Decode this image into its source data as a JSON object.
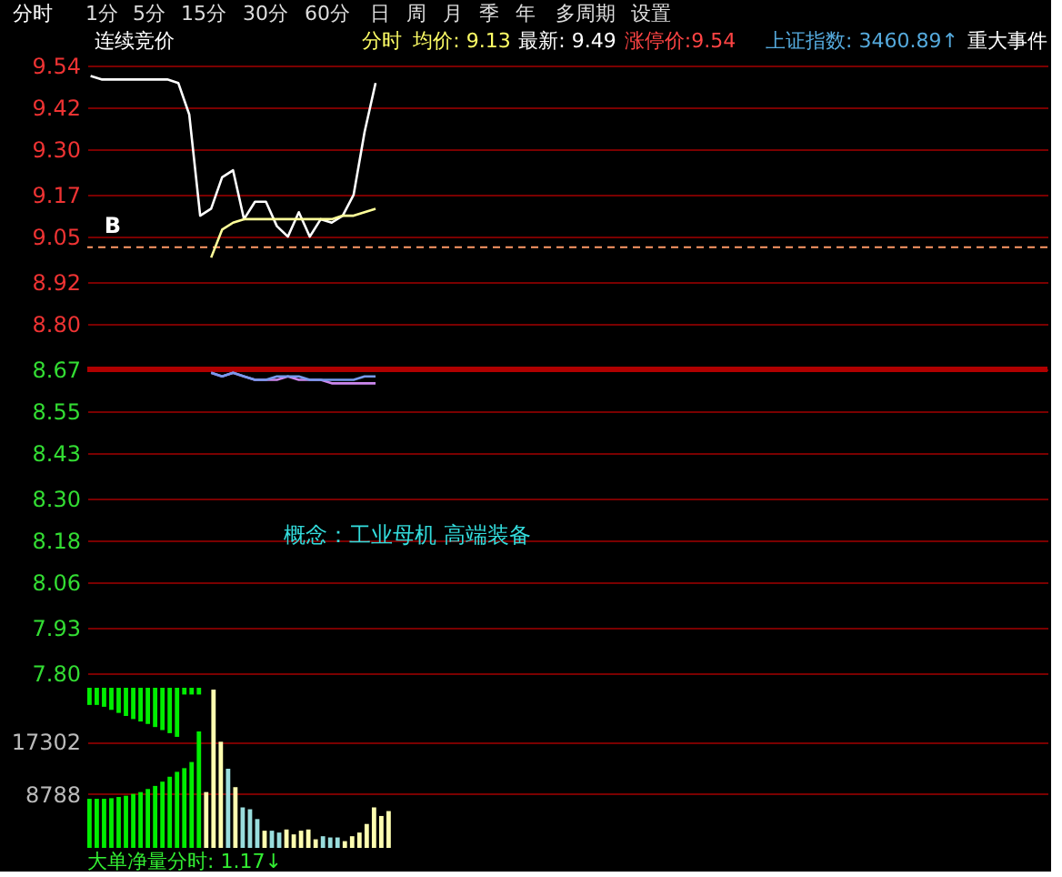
{
  "chart_data": [
    {
      "type": "line",
      "tick_labels": "y",
      "grid": "y",
      "marker": "none",
      "line_style": "solid",
      "annotations": [
        "分时",
        "1分",
        "5分",
        "15分",
        "30分",
        "60分",
        "日",
        "周",
        "月",
        "季",
        "年",
        "多周期",
        "设置",
        "连续竞价",
        "分时",
        "均价: 9.13",
        "最新: 9.49",
        "涨停价:9.54",
        "上证指数: 3460.89↑",
        "重大事件",
        "概念：工业母机 高端装备",
        "B"
      ],
      "categories": [
        null,
        null,
        null,
        null,
        null,
        null,
        null,
        null,
        null,
        null,
        null,
        null,
        null,
        null,
        null,
        null,
        null,
        null,
        null,
        null,
        null,
        null,
        null,
        null,
        null,
        null,
        null,
        null,
        null,
        null,
        null,
        null,
        null,
        null,
        null,
        null,
        null,
        null,
        null,
        null,
        null,
        null,
        null,
        null,
        null,
        null,
        null,
        null,
        null,
        null,
        null,
        null,
        null,
        null,
        null,
        null,
        null,
        null,
        null,
        null,
        null,
        null,
        null,
        null,
        null,
        null,
        null,
        null,
        null,
        null,
        null,
        null,
        null,
        null,
        null,
        null,
        null,
        null,
        null,
        null,
        null,
        null,
        null,
        null,
        null,
        null,
        null,
        null
      ],
      "ylim": [
        7.8,
        9.54
      ],
      "yticks": [
        9.54,
        9.42,
        {
          "value": 9.3,
          "label": "9.30"
        },
        9.17,
        9.05,
        8.92,
        {
          "value": 8.8,
          "label": "8.80"
        },
        8.67,
        8.55,
        8.43,
        {
          "value": 8.3,
          "label": "8.30"
        },
        8.18,
        8.06,
        7.93,
        {
          "value": 7.8,
          "label": "7.80"
        }
      ],
      "ref_lines": [
        {
          "axis": "y",
          "value": 8.67,
          "color": "#b00000",
          "line_style": "solid"
        },
        {
          "axis": "y",
          "value": 9.02,
          "color": "#ff9966",
          "line_style": "dashed"
        }
      ],
      "series": [
        {
          "color": "#ffffff",
          "values": [
            9.51,
            9.5,
            9.5,
            9.5,
            9.5,
            9.5,
            9.5,
            9.5,
            9.49,
            9.4,
            9.11,
            9.13,
            9.22,
            9.24,
            9.1,
            9.15,
            9.15,
            9.08,
            9.05,
            9.12,
            9.05,
            9.1,
            9.09,
            9.11,
            9.17,
            9.35,
            9.49,
            null,
            null,
            null,
            null,
            null,
            null,
            null,
            null,
            null,
            null,
            null,
            null,
            null,
            null,
            null,
            null,
            null,
            null,
            null,
            null,
            null,
            null,
            null,
            null,
            null,
            null,
            null,
            null,
            null,
            null,
            null,
            null,
            null,
            null,
            null,
            null,
            null,
            null,
            null,
            null,
            null,
            null,
            null,
            null,
            null,
            null,
            null,
            null,
            null,
            null,
            null,
            null,
            null,
            null,
            null,
            null,
            null,
            null,
            null,
            null,
            null
          ]
        },
        {
          "color": "#ffff99",
          "values": [
            null,
            null,
            null,
            null,
            null,
            null,
            null,
            null,
            null,
            null,
            null,
            8.99,
            9.07,
            9.09,
            9.1,
            9.1,
            9.1,
            9.1,
            9.1,
            9.1,
            9.1,
            9.1,
            9.1,
            9.11,
            9.11,
            9.12,
            9.13,
            null,
            null,
            null,
            null,
            null,
            null,
            null,
            null,
            null,
            null,
            null,
            null,
            null,
            null,
            null,
            null,
            null,
            null,
            null,
            null,
            null,
            null,
            null,
            null,
            null,
            null,
            null,
            null,
            null,
            null,
            null,
            null,
            null,
            null,
            null,
            null,
            null,
            null,
            null,
            null,
            null,
            null,
            null,
            null,
            null,
            null,
            null,
            null,
            null,
            null,
            null,
            null,
            null,
            null,
            null,
            null,
            null,
            null,
            null,
            null,
            null
          ]
        },
        {
          "color": "#cc88ee",
          "values": [
            null,
            null,
            null,
            null,
            null,
            null,
            null,
            null,
            null,
            null,
            null,
            8.66,
            8.65,
            8.66,
            8.65,
            8.64,
            8.64,
            8.64,
            8.65,
            8.64,
            8.64,
            8.64,
            8.63,
            8.63,
            8.63,
            8.63,
            8.63,
            null,
            null,
            null,
            null,
            null,
            null,
            null,
            null,
            null,
            null,
            null,
            null,
            null,
            null,
            null,
            null,
            null,
            null,
            null,
            null,
            null,
            null,
            null,
            null,
            null,
            null,
            null,
            null,
            null,
            null,
            null,
            null,
            null,
            null,
            null,
            null,
            null,
            null,
            null,
            null,
            null,
            null,
            null,
            null,
            null,
            null,
            null,
            null,
            null,
            null,
            null,
            null,
            null,
            null,
            null,
            null,
            null,
            null,
            null,
            null,
            null
          ]
        },
        {
          "color": "#7799ee",
          "values": [
            null,
            null,
            null,
            null,
            null,
            null,
            null,
            null,
            null,
            null,
            null,
            8.66,
            8.65,
            8.66,
            8.65,
            8.64,
            8.64,
            8.65,
            8.65,
            8.65,
            8.64,
            8.64,
            8.64,
            8.64,
            8.64,
            8.65,
            8.65,
            null,
            null,
            null,
            null,
            null,
            null,
            null,
            null,
            null,
            null,
            null,
            null,
            null,
            null,
            null,
            null,
            null,
            null,
            null,
            null,
            null,
            null,
            null,
            null,
            null,
            null,
            null,
            null,
            null,
            null,
            null,
            null,
            null,
            null,
            null,
            null,
            null,
            null,
            null,
            null,
            null,
            null,
            null,
            null,
            null,
            null,
            null,
            null,
            null,
            null,
            null,
            null,
            null,
            null,
            null,
            null,
            null,
            null,
            null,
            null,
            null
          ]
        }
      ]
    },
    {
      "type": "bar",
      "tick_labels": "y",
      "grid": "y",
      "annotations": [
        "大单净量分时: 1.17↓"
      ],
      "categories": [
        null,
        null,
        null,
        null,
        null,
        null,
        null,
        null,
        null,
        null,
        null,
        null,
        null,
        null,
        null,
        null,
        null,
        null,
        null,
        null,
        null,
        null,
        null,
        null,
        null,
        null,
        null,
        null,
        null,
        null,
        null,
        null,
        null,
        null,
        null,
        null,
        null,
        null,
        null,
        null,
        null,
        null,
        null,
        null,
        null,
        null,
        null,
        null,
        null,
        null,
        null,
        null,
        null,
        null,
        null,
        null,
        null,
        null,
        null,
        null,
        null,
        null,
        null,
        null,
        null,
        null,
        null,
        null,
        null,
        null,
        null,
        null,
        null,
        null,
        null,
        null,
        null,
        null,
        null,
        null,
        null,
        null,
        null,
        null,
        null,
        null,
        null,
        null,
        null,
        null,
        null,
        null,
        null,
        null,
        null,
        null,
        null,
        null,
        null,
        null,
        null,
        null,
        null,
        null,
        null,
        null,
        null,
        null,
        null,
        null,
        null,
        null,
        null,
        null,
        null,
        null,
        null,
        null,
        null,
        null,
        null,
        null,
        null,
        null,
        null,
        null,
        null,
        null,
        null,
        null,
        null,
        null
      ],
      "ylim": [
        0,
        26100
      ],
      "yticks": [
        8788,
        17302
      ],
      "series": [
        {
          "color": "#00ee00",
          "values": [
            8000,
            8000,
            8000,
            8100,
            8300,
            8500,
            8800,
            9100,
            9600,
            10100,
            10800,
            11600,
            12400,
            13000,
            14000,
            19000,
            null,
            null,
            null,
            null,
            null,
            null,
            null,
            null,
            null,
            null,
            null,
            null,
            null,
            null,
            null,
            null,
            null,
            null,
            null,
            null,
            null,
            null,
            null,
            null,
            null,
            null,
            null,
            null,
            null,
            null,
            null,
            null,
            null,
            null,
            null,
            null,
            null,
            null,
            null,
            null,
            null,
            null,
            null,
            null,
            null,
            null,
            null,
            null,
            null,
            null,
            null,
            null,
            null,
            null,
            null,
            null,
            null,
            null,
            null,
            null,
            null,
            null,
            null,
            null,
            null,
            null,
            null,
            null,
            null,
            null,
            null,
            null,
            null,
            null,
            null,
            null,
            null,
            null,
            null,
            null,
            null,
            null,
            null,
            null,
            null,
            null,
            null,
            null,
            null,
            null,
            null,
            null,
            null,
            null,
            null,
            null,
            null,
            null,
            null,
            null,
            null,
            null,
            null,
            null,
            null,
            null,
            null,
            null,
            null,
            null,
            null,
            null,
            null,
            null,
            null,
            null
          ]
        },
        {
          "color": "#00ee00",
          "base": [
            23300,
            23300,
            23000,
            22500,
            22000,
            21500,
            21000,
            20600,
            20200,
            19700,
            19200,
            18700,
            18100,
            25000,
            25000,
            25000,
            null,
            null,
            null,
            null,
            null,
            null,
            null,
            null,
            null,
            null,
            null,
            null,
            null,
            null,
            null,
            null,
            null,
            null,
            null,
            null,
            null,
            null,
            null,
            null,
            null,
            null,
            null,
            null,
            null,
            null,
            null,
            null,
            null,
            null,
            null,
            null,
            null,
            null,
            null,
            null,
            null,
            null,
            null,
            null,
            null,
            null,
            null,
            null,
            null,
            null,
            null,
            null,
            null,
            null,
            null,
            null,
            null,
            null,
            null,
            null,
            null,
            null,
            null,
            null,
            null,
            null,
            null,
            null,
            null,
            null,
            null,
            null,
            null,
            null,
            null,
            null,
            null,
            null,
            null,
            null,
            null,
            null,
            null,
            null,
            null,
            null,
            null,
            null,
            null,
            null,
            null,
            null,
            null,
            null,
            null,
            null,
            null,
            null,
            null,
            null,
            null,
            null,
            null,
            null,
            null,
            null,
            null,
            null,
            null,
            null,
            null,
            null,
            null,
            null,
            null,
            null
          ],
          "values": [
            2800,
            2800,
            3100,
            3600,
            4100,
            4600,
            5100,
            5500,
            5900,
            6400,
            6900,
            7400,
            8000,
            1100,
            1100,
            1100,
            null,
            null,
            null,
            null,
            null,
            null,
            null,
            null,
            null,
            null,
            null,
            null,
            null,
            null,
            null,
            null,
            null,
            null,
            null,
            null,
            null,
            null,
            null,
            null,
            null,
            null,
            null,
            null,
            null,
            null,
            null,
            null,
            null,
            null,
            null,
            null,
            null,
            null,
            null,
            null,
            null,
            null,
            null,
            null,
            null,
            null,
            null,
            null,
            null,
            null,
            null,
            null,
            null,
            null,
            null,
            null,
            null,
            null,
            null,
            null,
            null,
            null,
            null,
            null,
            null,
            null,
            null,
            null,
            null,
            null,
            null,
            null,
            null,
            null,
            null,
            null,
            null,
            null,
            null,
            null,
            null,
            null,
            null,
            null,
            null,
            null,
            null,
            null,
            null,
            null,
            null,
            null,
            null,
            null,
            null,
            null,
            null,
            null,
            null,
            null,
            null,
            null,
            null,
            null,
            null,
            null,
            null,
            null,
            null,
            null,
            null,
            null,
            null,
            null,
            null,
            null
          ]
        },
        {
          "values": [
            null,
            null,
            null,
            null,
            null,
            null,
            null,
            null,
            null,
            null,
            null,
            null,
            null,
            null,
            null,
            null,
            9100,
            25800,
            17300,
            12900,
            9900,
            6600,
            6300,
            4700,
            2800,
            2800,
            2500,
            3000,
            2200,
            2800,
            3000,
            1400,
            1900,
            1700,
            1700,
            1100,
            1900,
            2500,
            3900,
            6600,
            5200,
            6000,
            null,
            null,
            null,
            null,
            null,
            null,
            null,
            null,
            null,
            null,
            null,
            null,
            null,
            null,
            null,
            null,
            null,
            null,
            null,
            null,
            null,
            null,
            null,
            null,
            null,
            null,
            null,
            null,
            null,
            null,
            null,
            null,
            null,
            null,
            null,
            null,
            null,
            null,
            null,
            null,
            null,
            null,
            null,
            null,
            null,
            null,
            null,
            null,
            null,
            null,
            null,
            null,
            null,
            null,
            null,
            null,
            null,
            null,
            null,
            null,
            null,
            null,
            null,
            null,
            null,
            null,
            null,
            null,
            null,
            null,
            null,
            null,
            null,
            null,
            null,
            null,
            null,
            null,
            null,
            null,
            null,
            null,
            null,
            null,
            null,
            null,
            null,
            null,
            null,
            null
          ],
          "colors": [
            null,
            null,
            null,
            null,
            null,
            null,
            null,
            null,
            null,
            null,
            null,
            null,
            null,
            null,
            null,
            null,
            "#ffffb0",
            "#ffffb0",
            "#ffffb0",
            "#99dddd",
            "#ffffb0",
            "#99dddd",
            "#99dddd",
            "#99dddd",
            "#ffffb0",
            "#99dddd",
            "#99dddd",
            "#ffffb0",
            "#ffffb0",
            "#ffffb0",
            "#ffffb0",
            "#ffffb0",
            "#99dddd",
            "#99dddd",
            "#99dddd",
            "#ffffb0",
            "#ffffb0",
            "#ffffb0",
            "#ffffb0",
            "#ffffb0",
            "#ffffb0",
            "#ffffb0",
            null,
            null,
            null,
            null,
            null,
            null,
            null,
            null,
            null,
            null,
            null,
            null,
            null,
            null,
            null,
            null,
            null,
            null,
            null,
            null,
            null,
            null,
            null,
            null,
            null,
            null,
            null,
            null,
            null,
            null,
            null,
            null,
            null,
            null,
            null,
            null,
            null,
            null,
            null,
            null,
            null,
            null,
            null,
            null,
            null,
            null,
            null,
            null,
            null,
            null,
            null,
            null,
            null,
            null,
            null,
            null,
            null,
            null,
            null,
            null,
            null,
            null,
            null,
            null,
            null,
            null,
            null,
            null,
            null,
            null,
            null,
            null,
            null,
            null,
            null,
            null,
            null,
            null,
            null,
            null,
            null,
            null,
            null,
            null,
            null,
            null,
            null,
            null,
            null,
            null
          ]
        }
      ]
    }
  ]
}
